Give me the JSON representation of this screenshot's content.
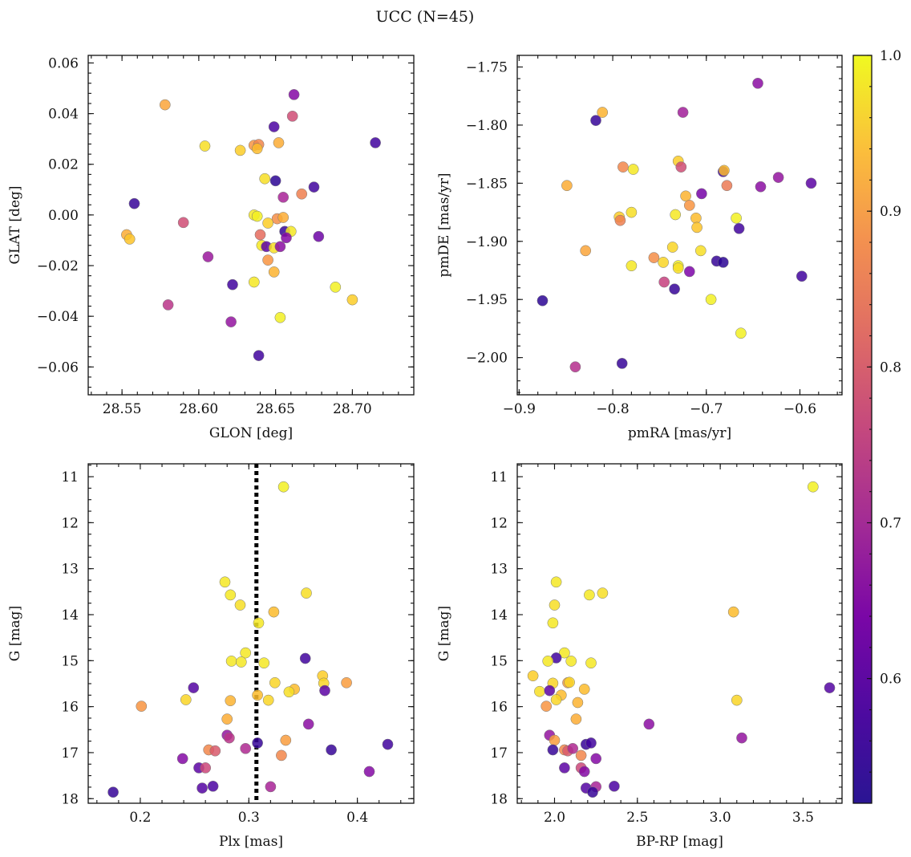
{
  "title": "UCC (N=45)",
  "colorbar": {
    "range": [
      0.52,
      1.0
    ],
    "ticks": [
      "0.6",
      "0.7",
      "0.8",
      "0.9",
      "1.0"
    ],
    "tick_values": [
      0.6,
      0.7,
      0.8,
      0.9,
      1.0
    ],
    "colormap": "plasma"
  },
  "chart_data": [
    {
      "type": "scatter",
      "name": "position",
      "xlabel": "GLON [deg]",
      "ylabel": "GLAT [deg]",
      "xlim": [
        28.528,
        28.74
      ],
      "ylim": [
        -0.071,
        0.063
      ],
      "xticks": [
        "28.55",
        "28.60",
        "28.65",
        "28.70"
      ],
      "xtick_values": [
        28.55,
        28.6,
        28.65,
        28.7
      ],
      "yticks": [
        "0.06",
        "0.04",
        "0.02",
        "0.00",
        "−0.02",
        "−0.04",
        "−0.06"
      ],
      "ytick_values": [
        0.06,
        0.04,
        0.02,
        0.0,
        -0.02,
        -0.04,
        -0.06
      ],
      "inverted_y": false,
      "points": [
        {
          "x": 28.578,
          "y": 0.0435,
          "c": 0.9
        },
        {
          "x": 28.662,
          "y": 0.0475,
          "c": 0.65
        },
        {
          "x": 28.661,
          "y": 0.039,
          "c": 0.77
        },
        {
          "x": 28.649,
          "y": 0.0348,
          "c": 0.58
        },
        {
          "x": 28.715,
          "y": 0.0285,
          "c": 0.57
        },
        {
          "x": 28.604,
          "y": 0.0272,
          "c": 0.97
        },
        {
          "x": 28.627,
          "y": 0.0255,
          "c": 0.95
        },
        {
          "x": 28.636,
          "y": 0.0275,
          "c": 0.88
        },
        {
          "x": 28.639,
          "y": 0.0278,
          "c": 0.86
        },
        {
          "x": 28.638,
          "y": 0.0262,
          "c": 0.93
        },
        {
          "x": 28.652,
          "y": 0.0285,
          "c": 0.91
        },
        {
          "x": 28.643,
          "y": 0.0143,
          "c": 0.97
        },
        {
          "x": 28.65,
          "y": 0.0135,
          "c": 0.55
        },
        {
          "x": 28.675,
          "y": 0.011,
          "c": 0.57
        },
        {
          "x": 28.667,
          "y": 0.0083,
          "c": 0.85
        },
        {
          "x": 28.655,
          "y": 0.007,
          "c": 0.7
        },
        {
          "x": 28.558,
          "y": 0.0045,
          "c": 0.56
        },
        {
          "x": 28.636,
          "y": 0.0,
          "c": 0.98
        },
        {
          "x": 28.638,
          "y": -0.0005,
          "c": 0.99
        },
        {
          "x": 28.651,
          "y": -0.0015,
          "c": 0.87
        },
        {
          "x": 28.655,
          "y": -0.001,
          "c": 0.91
        },
        {
          "x": 28.645,
          "y": -0.0032,
          "c": 0.95
        },
        {
          "x": 28.59,
          "y": -0.003,
          "c": 0.77
        },
        {
          "x": 28.553,
          "y": -0.0078,
          "c": 0.91
        },
        {
          "x": 28.555,
          "y": -0.0095,
          "c": 0.94
        },
        {
          "x": 28.656,
          "y": -0.0065,
          "c": 0.56
        },
        {
          "x": 28.66,
          "y": -0.0065,
          "c": 0.98
        },
        {
          "x": 28.64,
          "y": -0.0078,
          "c": 0.82
        },
        {
          "x": 28.657,
          "y": -0.009,
          "c": 0.65
        },
        {
          "x": 28.678,
          "y": -0.0085,
          "c": 0.62
        },
        {
          "x": 28.641,
          "y": -0.012,
          "c": 0.98
        },
        {
          "x": 28.644,
          "y": -0.0125,
          "c": 0.6
        },
        {
          "x": 28.649,
          "y": -0.013,
          "c": 0.97
        },
        {
          "x": 28.653,
          "y": -0.0125,
          "c": 0.66
        },
        {
          "x": 28.606,
          "y": -0.0165,
          "c": 0.68
        },
        {
          "x": 28.645,
          "y": -0.0178,
          "c": 0.88
        },
        {
          "x": 28.649,
          "y": -0.0225,
          "c": 0.92
        },
        {
          "x": 28.622,
          "y": -0.0275,
          "c": 0.57
        },
        {
          "x": 28.636,
          "y": -0.0265,
          "c": 0.98
        },
        {
          "x": 28.689,
          "y": -0.0285,
          "c": 0.99
        },
        {
          "x": 28.7,
          "y": -0.0335,
          "c": 0.95
        },
        {
          "x": 28.58,
          "y": -0.0355,
          "c": 0.73
        },
        {
          "x": 28.653,
          "y": -0.0405,
          "c": 0.99
        },
        {
          "x": 28.621,
          "y": -0.0422,
          "c": 0.67
        },
        {
          "x": 28.639,
          "y": -0.0555,
          "c": 0.57
        }
      ]
    },
    {
      "type": "scatter",
      "name": "proper-motion",
      "xlabel": "pmRA [mas/yr]",
      "ylabel": "pmDE [mas/yr]",
      "xlim": [
        -0.902,
        -0.555
      ],
      "ylim": [
        -2.032,
        -1.74
      ],
      "xticks": [
        "−0.9",
        "−0.8",
        "−0.7",
        "−0.6"
      ],
      "xtick_values": [
        -0.9,
        -0.8,
        -0.7,
        -0.6
      ],
      "yticks": [
        "−1.75",
        "−1.80",
        "−1.85",
        "−1.90",
        "−1.95",
        "−2.00"
      ],
      "ytick_values": [
        -1.75,
        -1.8,
        -1.85,
        -1.9,
        -1.95,
        -2.0
      ],
      "inverted_y": false,
      "points": [
        {
          "x": -0.645,
          "y": -1.764,
          "c": 0.66
        },
        {
          "x": -0.811,
          "y": -1.789,
          "c": 0.92
        },
        {
          "x": -0.818,
          "y": -1.796,
          "c": 0.56
        },
        {
          "x": -0.725,
          "y": -1.789,
          "c": 0.69
        },
        {
          "x": -0.73,
          "y": -1.831,
          "c": 0.95
        },
        {
          "x": -0.789,
          "y": -1.836,
          "c": 0.86
        },
        {
          "x": -0.778,
          "y": -1.838,
          "c": 0.98
        },
        {
          "x": -0.727,
          "y": -1.836,
          "c": 0.77
        },
        {
          "x": -0.682,
          "y": -1.84,
          "c": 0.57
        },
        {
          "x": -0.681,
          "y": -1.839,
          "c": 0.93
        },
        {
          "x": -0.849,
          "y": -1.852,
          "c": 0.91
        },
        {
          "x": -0.678,
          "y": -1.852,
          "c": 0.84
        },
        {
          "x": -0.623,
          "y": -1.845,
          "c": 0.67
        },
        {
          "x": -0.642,
          "y": -1.853,
          "c": 0.66
        },
        {
          "x": -0.588,
          "y": -1.85,
          "c": 0.6
        },
        {
          "x": -0.705,
          "y": -1.859,
          "c": 0.63
        },
        {
          "x": -0.722,
          "y": -1.861,
          "c": 0.92
        },
        {
          "x": -0.718,
          "y": -1.869,
          "c": 0.88
        },
        {
          "x": -0.78,
          "y": -1.875,
          "c": 0.97
        },
        {
          "x": -0.733,
          "y": -1.877,
          "c": 0.98
        },
        {
          "x": -0.793,
          "y": -1.879,
          "c": 0.95
        },
        {
          "x": -0.792,
          "y": -1.882,
          "c": 0.85
        },
        {
          "x": -0.711,
          "y": -1.88,
          "c": 0.93
        },
        {
          "x": -0.668,
          "y": -1.88,
          "c": 0.99
        },
        {
          "x": -0.71,
          "y": -1.888,
          "c": 0.94
        },
        {
          "x": -0.665,
          "y": -1.889,
          "c": 0.57
        },
        {
          "x": -0.829,
          "y": -1.908,
          "c": 0.9
        },
        {
          "x": -0.736,
          "y": -1.905,
          "c": 0.96
        },
        {
          "x": -0.706,
          "y": -1.908,
          "c": 0.97
        },
        {
          "x": -0.756,
          "y": -1.914,
          "c": 0.87
        },
        {
          "x": -0.746,
          "y": -1.918,
          "c": 0.96
        },
        {
          "x": -0.689,
          "y": -1.917,
          "c": 0.56
        },
        {
          "x": -0.682,
          "y": -1.918,
          "c": 0.55
        },
        {
          "x": -0.78,
          "y": -1.921,
          "c": 0.98
        },
        {
          "x": -0.73,
          "y": -1.921,
          "c": 0.99
        },
        {
          "x": -0.73,
          "y": -1.923,
          "c": 0.97
        },
        {
          "x": -0.718,
          "y": -1.926,
          "c": 0.64
        },
        {
          "x": -0.598,
          "y": -1.93,
          "c": 0.57
        },
        {
          "x": -0.745,
          "y": -1.935,
          "c": 0.75
        },
        {
          "x": -0.734,
          "y": -1.941,
          "c": 0.56
        },
        {
          "x": -0.875,
          "y": -1.951,
          "c": 0.55
        },
        {
          "x": -0.695,
          "y": -1.95,
          "c": 0.99
        },
        {
          "x": -0.663,
          "y": -1.979,
          "c": 0.99
        },
        {
          "x": -0.79,
          "y": -2.005,
          "c": 0.56
        },
        {
          "x": -0.84,
          "y": -2.008,
          "c": 0.72
        }
      ]
    },
    {
      "type": "scatter",
      "name": "plx-g",
      "xlabel": "Plx [mas]",
      "ylabel": "G [mag]",
      "xlim": [
        0.152,
        0.452
      ],
      "ylim": [
        10.72,
        18.1
      ],
      "xticks": [
        "0.2",
        "0.3",
        "0.4"
      ],
      "xtick_values": [
        0.2,
        0.3,
        0.4
      ],
      "yticks": [
        "11",
        "12",
        "13",
        "14",
        "15",
        "16",
        "17",
        "18"
      ],
      "ytick_values": [
        11,
        12,
        13,
        14,
        15,
        16,
        17,
        18
      ],
      "inverted_y": true,
      "vline": 0.307,
      "points": [
        {
          "x": 0.332,
          "y": 11.22,
          "c": 0.99
        },
        {
          "x": 0.278,
          "y": 13.29,
          "c": 0.98
        },
        {
          "x": 0.283,
          "y": 13.57,
          "c": 0.98
        },
        {
          "x": 0.353,
          "y": 13.53,
          "c": 0.97
        },
        {
          "x": 0.292,
          "y": 13.79,
          "c": 0.97
        },
        {
          "x": 0.323,
          "y": 13.94,
          "c": 0.93
        },
        {
          "x": 0.309,
          "y": 14.18,
          "c": 0.98
        },
        {
          "x": 0.297,
          "y": 14.83,
          "c": 0.98
        },
        {
          "x": 0.352,
          "y": 14.95,
          "c": 0.57
        },
        {
          "x": 0.284,
          "y": 15.01,
          "c": 0.98
        },
        {
          "x": 0.293,
          "y": 15.03,
          "c": 0.98
        },
        {
          "x": 0.314,
          "y": 15.05,
          "c": 0.98
        },
        {
          "x": 0.368,
          "y": 15.33,
          "c": 0.95
        },
        {
          "x": 0.369,
          "y": 15.49,
          "c": 0.96
        },
        {
          "x": 0.39,
          "y": 15.48,
          "c": 0.89
        },
        {
          "x": 0.324,
          "y": 15.48,
          "c": 0.96
        },
        {
          "x": 0.249,
          "y": 15.59,
          "c": 0.59
        },
        {
          "x": 0.342,
          "y": 15.62,
          "c": 0.93
        },
        {
          "x": 0.337,
          "y": 15.68,
          "c": 0.97
        },
        {
          "x": 0.37,
          "y": 15.65,
          "c": 0.6
        },
        {
          "x": 0.308,
          "y": 15.75,
          "c": 0.93
        },
        {
          "x": 0.242,
          "y": 15.85,
          "c": 0.96
        },
        {
          "x": 0.283,
          "y": 15.87,
          "c": 0.92
        },
        {
          "x": 0.318,
          "y": 15.86,
          "c": 0.96
        },
        {
          "x": 0.201,
          "y": 15.99,
          "c": 0.88
        },
        {
          "x": 0.28,
          "y": 16.27,
          "c": 0.91
        },
        {
          "x": 0.355,
          "y": 16.38,
          "c": 0.66
        },
        {
          "x": 0.28,
          "y": 16.62,
          "c": 0.67
        },
        {
          "x": 0.282,
          "y": 16.68,
          "c": 0.73
        },
        {
          "x": 0.334,
          "y": 16.73,
          "c": 0.89
        },
        {
          "x": 0.308,
          "y": 16.79,
          "c": 0.56
        },
        {
          "x": 0.428,
          "y": 16.82,
          "c": 0.57
        },
        {
          "x": 0.263,
          "y": 16.94,
          "c": 0.86
        },
        {
          "x": 0.269,
          "y": 16.96,
          "c": 0.79
        },
        {
          "x": 0.297,
          "y": 16.91,
          "c": 0.71
        },
        {
          "x": 0.376,
          "y": 16.94,
          "c": 0.56
        },
        {
          "x": 0.33,
          "y": 17.06,
          "c": 0.86
        },
        {
          "x": 0.239,
          "y": 17.13,
          "c": 0.65
        },
        {
          "x": 0.254,
          "y": 17.33,
          "c": 0.6
        },
        {
          "x": 0.26,
          "y": 17.33,
          "c": 0.76
        },
        {
          "x": 0.411,
          "y": 17.41,
          "c": 0.65
        },
        {
          "x": 0.257,
          "y": 17.77,
          "c": 0.59
        },
        {
          "x": 0.267,
          "y": 17.73,
          "c": 0.58
        },
        {
          "x": 0.32,
          "y": 17.74,
          "c": 0.7
        },
        {
          "x": 0.175,
          "y": 17.86,
          "c": 0.56
        }
      ]
    },
    {
      "type": "scatter",
      "name": "cmd",
      "xlabel": "BP-RP [mag]",
      "ylabel": "G [mag]",
      "xlim": [
        1.775,
        3.735
      ],
      "ylim": [
        10.72,
        18.1
      ],
      "xticks": [
        "2.0",
        "2.5",
        "3.0",
        "3.5"
      ],
      "xtick_values": [
        2.0,
        2.5,
        3.0,
        3.5
      ],
      "yticks": [
        "11",
        "12",
        "13",
        "14",
        "15",
        "16",
        "17",
        "18"
      ],
      "ytick_values": [
        11,
        12,
        13,
        14,
        15,
        16,
        17,
        18
      ],
      "inverted_y": true,
      "points": [
        {
          "x": 3.56,
          "y": 11.22,
          "c": 0.99
        },
        {
          "x": 2.01,
          "y": 13.29,
          "c": 0.98
        },
        {
          "x": 2.29,
          "y": 13.53,
          "c": 0.97
        },
        {
          "x": 2.21,
          "y": 13.57,
          "c": 0.98
        },
        {
          "x": 2.0,
          "y": 13.79,
          "c": 0.97
        },
        {
          "x": 3.08,
          "y": 13.94,
          "c": 0.93
        },
        {
          "x": 1.99,
          "y": 14.18,
          "c": 0.98
        },
        {
          "x": 2.06,
          "y": 14.83,
          "c": 0.98
        },
        {
          "x": 2.01,
          "y": 14.94,
          "c": 0.57
        },
        {
          "x": 1.96,
          "y": 15.01,
          "c": 0.98
        },
        {
          "x": 2.1,
          "y": 15.01,
          "c": 0.98
        },
        {
          "x": 2.22,
          "y": 15.05,
          "c": 0.98
        },
        {
          "x": 1.87,
          "y": 15.33,
          "c": 0.95
        },
        {
          "x": 1.99,
          "y": 15.49,
          "c": 0.96
        },
        {
          "x": 2.08,
          "y": 15.48,
          "c": 0.89
        },
        {
          "x": 2.09,
          "y": 15.47,
          "c": 0.96
        },
        {
          "x": 3.66,
          "y": 15.59,
          "c": 0.59
        },
        {
          "x": 2.18,
          "y": 15.62,
          "c": 0.93
        },
        {
          "x": 1.91,
          "y": 15.67,
          "c": 0.97
        },
        {
          "x": 1.97,
          "y": 15.65,
          "c": 0.6
        },
        {
          "x": 2.04,
          "y": 15.75,
          "c": 0.93
        },
        {
          "x": 2.01,
          "y": 15.85,
          "c": 0.96
        },
        {
          "x": 2.14,
          "y": 15.91,
          "c": 0.92
        },
        {
          "x": 3.1,
          "y": 15.86,
          "c": 0.96
        },
        {
          "x": 1.95,
          "y": 15.99,
          "c": 0.88
        },
        {
          "x": 2.13,
          "y": 16.27,
          "c": 0.91
        },
        {
          "x": 2.57,
          "y": 16.38,
          "c": 0.66
        },
        {
          "x": 1.97,
          "y": 16.62,
          "c": 0.67
        },
        {
          "x": 3.13,
          "y": 16.68,
          "c": 0.67
        },
        {
          "x": 2.0,
          "y": 16.73,
          "c": 0.89
        },
        {
          "x": 2.19,
          "y": 16.82,
          "c": 0.56
        },
        {
          "x": 2.22,
          "y": 16.79,
          "c": 0.57
        },
        {
          "x": 2.06,
          "y": 16.94,
          "c": 0.86
        },
        {
          "x": 2.08,
          "y": 16.96,
          "c": 0.79
        },
        {
          "x": 2.11,
          "y": 16.91,
          "c": 0.71
        },
        {
          "x": 1.99,
          "y": 16.94,
          "c": 0.56
        },
        {
          "x": 2.16,
          "y": 17.06,
          "c": 0.86
        },
        {
          "x": 2.25,
          "y": 17.13,
          "c": 0.65
        },
        {
          "x": 2.06,
          "y": 17.33,
          "c": 0.6
        },
        {
          "x": 2.16,
          "y": 17.33,
          "c": 0.76
        },
        {
          "x": 2.18,
          "y": 17.41,
          "c": 0.65
        },
        {
          "x": 2.19,
          "y": 17.77,
          "c": 0.59
        },
        {
          "x": 2.36,
          "y": 17.73,
          "c": 0.58
        },
        {
          "x": 2.25,
          "y": 17.74,
          "c": 0.7
        },
        {
          "x": 2.23,
          "y": 17.86,
          "c": 0.56
        }
      ]
    }
  ]
}
